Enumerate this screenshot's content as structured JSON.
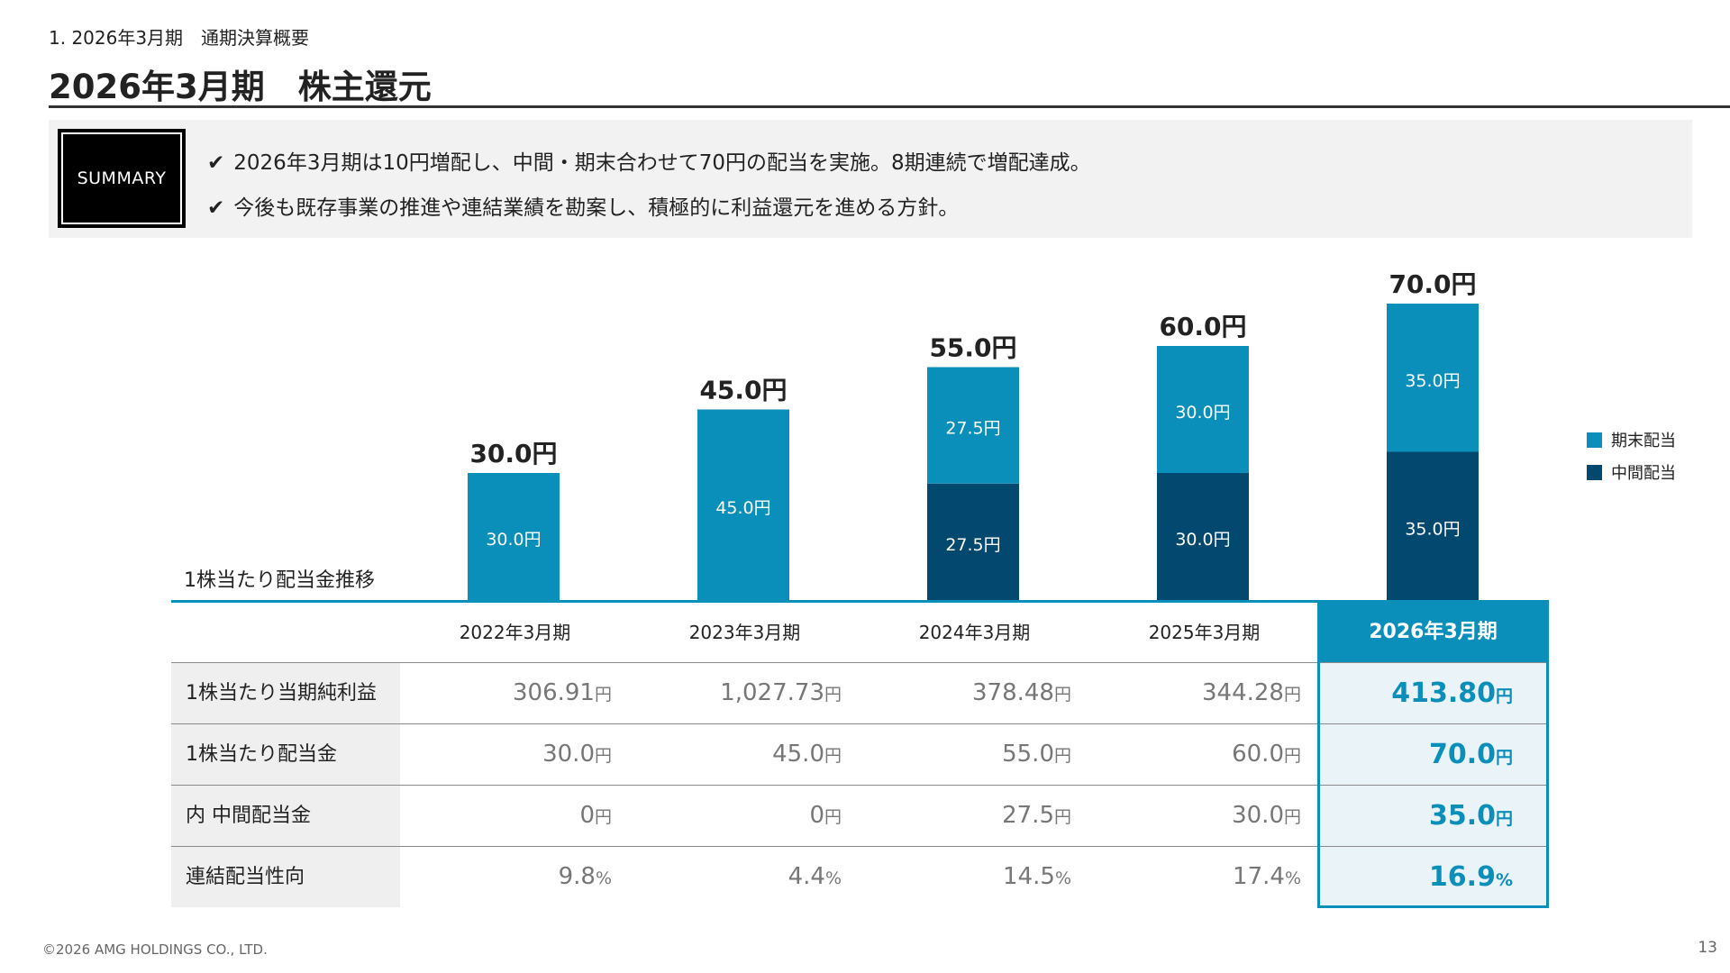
{
  "breadcrumb": "1. 2026年3月期　通期決算概要",
  "page_title": "2026年3月期　株主還元",
  "summary": {
    "badge": "SUMMARY",
    "check_icon": "✔",
    "lines": [
      "2026年3月期は10円増配し、中間・期末合わせて70円の配当を実施。8期連続で増配達成。",
      "今後も既存事業の推進や連結業績を勘案し、積極的に利益還元を進める方針。"
    ]
  },
  "chart_label": "1株当たり配当金推移",
  "legend": [
    {
      "label": "期末配当",
      "color": "#0a8fba"
    },
    {
      "label": "中間配当",
      "color": "#03496f"
    }
  ],
  "chart_data": {
    "type": "bar",
    "stacked": true,
    "title": "1株当たり配当金推移",
    "categories": [
      "2022年3月期",
      "2023年3月期",
      "2024年3月期",
      "2025年3月期",
      "2026年3月期"
    ],
    "series": [
      {
        "name": "中間配当",
        "color": "#03496f",
        "values": [
          0,
          0,
          27.5,
          30.0,
          35.0
        ]
      },
      {
        "name": "期末配当",
        "color": "#0a8fba",
        "values": [
          30.0,
          45.0,
          27.5,
          30.0,
          35.0
        ]
      }
    ],
    "totals": [
      30.0,
      45.0,
      55.0,
      60.0,
      70.0
    ],
    "segment_labels": [
      {
        "interim": "",
        "year_end": "30.0円"
      },
      {
        "interim": "",
        "year_end": "45.0円"
      },
      {
        "interim": "27.5円",
        "year_end": "27.5円"
      },
      {
        "interim": "30.0円",
        "year_end": "30.0円"
      },
      {
        "interim": "35.0円",
        "year_end": "35.0円"
      }
    ],
    "total_labels": [
      "30.0円",
      "45.0円",
      "55.0円",
      "60.0円",
      "70.0円"
    ],
    "unit": "円",
    "legend_position": "right",
    "grid": false
  },
  "table": {
    "columns": [
      "2022年3月期",
      "2023年3月期",
      "2024年3月期",
      "2025年3月期",
      "2026年3月期"
    ],
    "rows": [
      {
        "label": "1株当たり当期純利益",
        "values": [
          "306.91",
          "1,027.73",
          "378.48",
          "344.28",
          "413.80"
        ],
        "unit": "円"
      },
      {
        "label": "1株当たり配当金",
        "values": [
          "30.0",
          "45.0",
          "55.0",
          "60.0",
          "70.0"
        ],
        "unit": "円"
      },
      {
        "label": "内 中間配当金",
        "values": [
          "0",
          "0",
          "27.5",
          "30.0",
          "35.0"
        ],
        "unit": "円"
      },
      {
        "label": "連結配当性向",
        "values": [
          "9.8",
          "4.4",
          "14.5",
          "17.4",
          "16.9"
        ],
        "unit": "%"
      }
    ]
  },
  "footer": {
    "copyright": "©2026 AMG HOLDINGS CO., LTD.",
    "page_number": "13"
  }
}
